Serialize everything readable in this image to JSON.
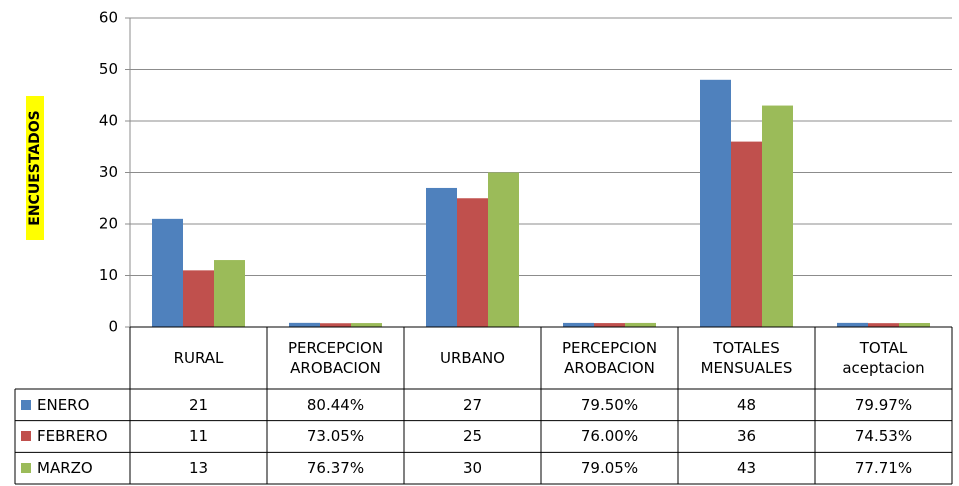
{
  "chart_data": {
    "type": "bar",
    "y_axis_label": "ENCUESTADOS",
    "categories": [
      "RURAL",
      "PERCEPCION AROBACION",
      "URBANO",
      "PERCEPCION AROBACION",
      "TOTALES MENSUALES",
      "TOTAL aceptacion"
    ],
    "series": [
      {
        "name": "ENERO",
        "color": "#4f81bd",
        "values": [
          21,
          0.8044,
          27,
          0.795,
          48,
          0.7997
        ],
        "value_labels": [
          "21",
          "80.44%",
          "27",
          "79.50%",
          "48",
          "79.97%"
        ]
      },
      {
        "name": "FEBRERO",
        "color": "#c0504d",
        "values": [
          11,
          0.7305,
          25,
          0.76,
          36,
          0.7453
        ],
        "value_labels": [
          "11",
          "73.05%",
          "25",
          "76.00%",
          "36",
          "74.53%"
        ]
      },
      {
        "name": "MARZO",
        "color": "#9bbb59",
        "values": [
          13,
          0.7637,
          30,
          0.7905,
          43,
          0.7771
        ],
        "value_labels": [
          "13",
          "76.37%",
          "30",
          "79.05%",
          "43",
          "77.71%"
        ]
      }
    ],
    "ylim": [
      0,
      60
    ],
    "yticks": [
      0,
      10,
      20,
      30,
      40,
      50,
      60
    ],
    "grid": true,
    "data_table": true
  }
}
